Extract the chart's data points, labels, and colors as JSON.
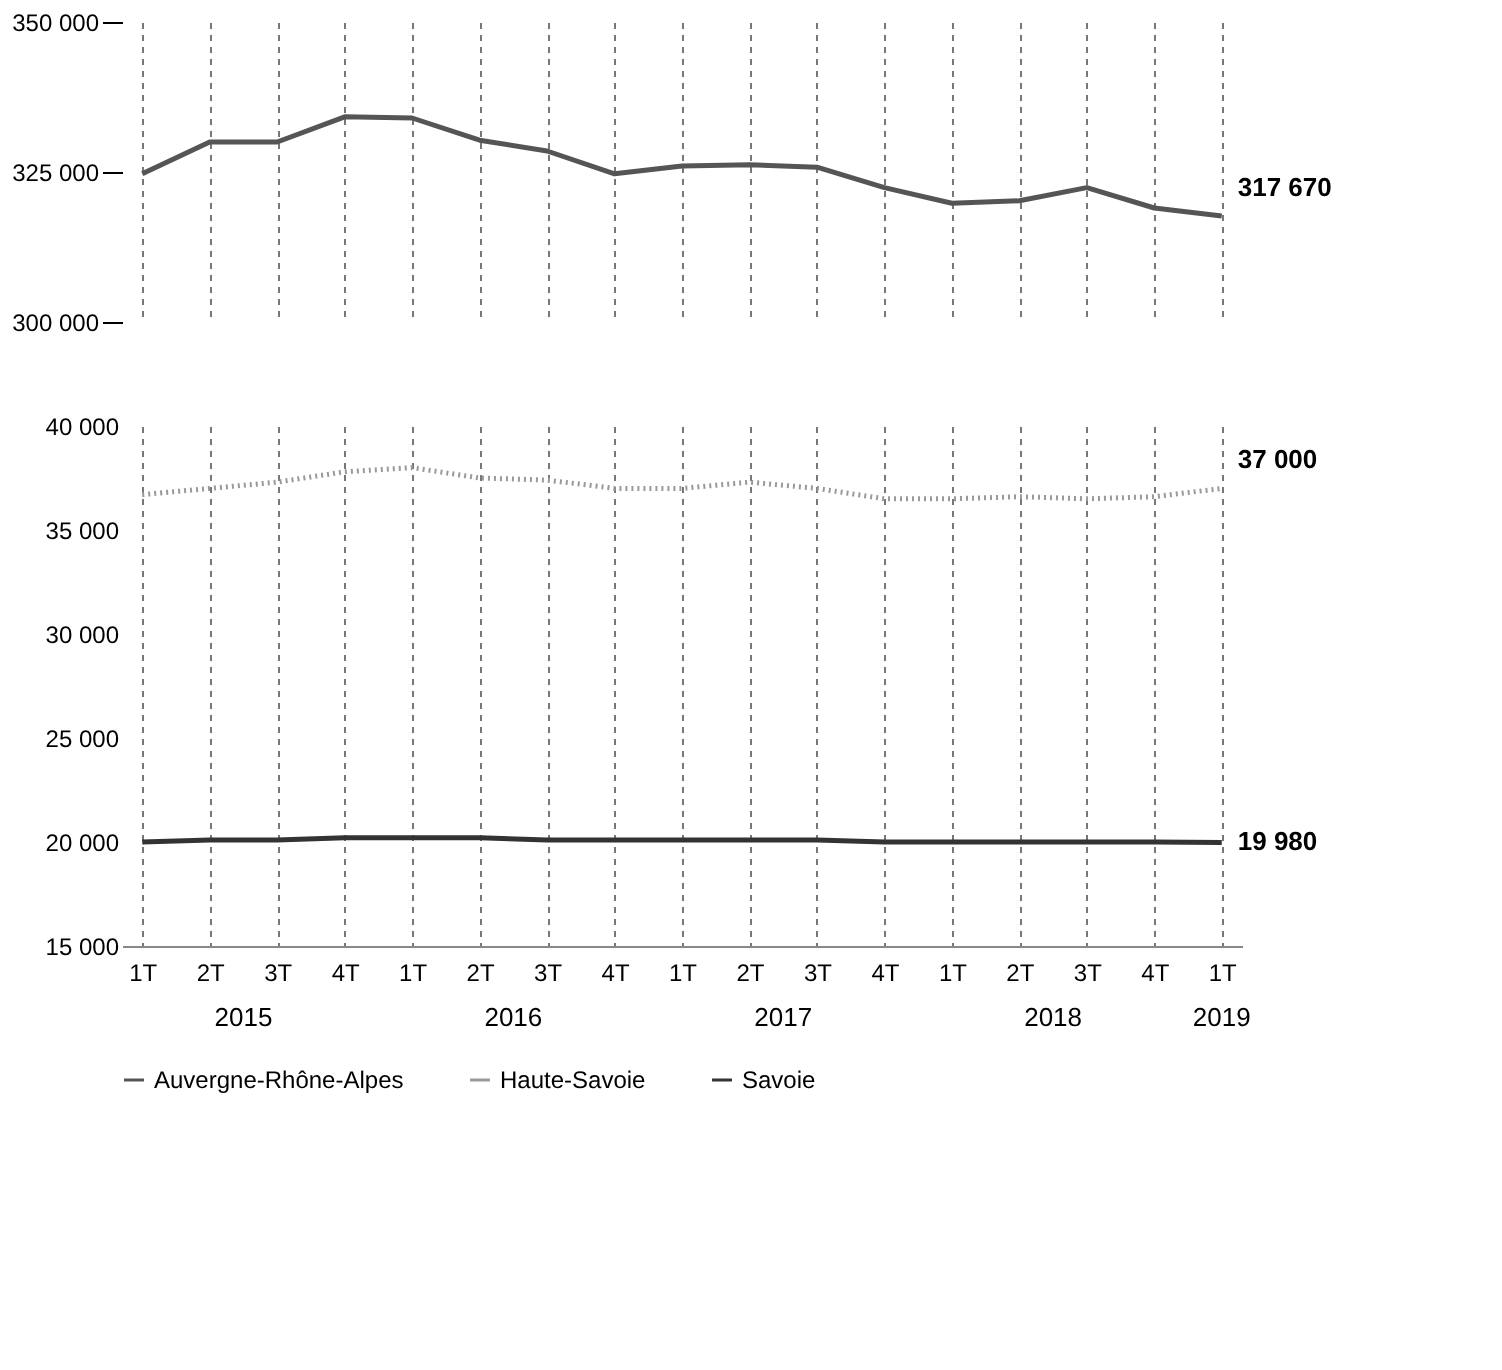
{
  "chart_data": [
    {
      "type": "line",
      "categories": [
        null,
        null,
        null,
        null,
        null,
        null,
        null,
        null,
        null,
        null,
        null,
        null,
        null,
        null,
        null,
        null,
        null
      ],
      "series": [
        {
          "name": "Auvergne-Rhône-Alpes",
          "color": "#555555",
          "values": [
            324700,
            330000,
            330000,
            334200,
            334000,
            330300,
            328500,
            324700,
            326000,
            326200,
            325800,
            322400,
            319800,
            320200,
            322400,
            319000,
            317670
          ],
          "value_labels": [
            null,
            null,
            null,
            null,
            null,
            null,
            null,
            null,
            null,
            null,
            null,
            null,
            null,
            null,
            null,
            null,
            "317 670"
          ]
        }
      ],
      "ylim": [
        300000,
        350000
      ],
      "yticks": [
        {
          "value": 300000,
          "label": "300 000"
        },
        {
          "value": 325000,
          "label": "325 000"
        },
        {
          "value": 350000,
          "label": "350 000"
        }
      ],
      "grid": "x",
      "tick_labels": "y",
      "legend": "bottom",
      "marker": "none",
      "line_style": "solid"
    },
    {
      "type": "line",
      "categories": [
        "1T",
        "2T",
        "3T",
        "4T",
        "1T",
        "2T",
        "3T",
        "4T",
        "1T",
        "2T",
        "3T",
        "4T",
        "1T",
        "2T",
        "3T",
        "4T",
        "1T"
      ],
      "series": [
        {
          "name": "Haute-Savoie",
          "color": "#999999",
          "line_style": "dotted",
          "values": [
            36700,
            37000,
            37300,
            37800,
            38000,
            37500,
            37400,
            37000,
            37000,
            37300,
            37000,
            36500,
            36500,
            36600,
            36500,
            36600,
            37000
          ],
          "value_labels": [
            null,
            null,
            null,
            null,
            null,
            null,
            null,
            null,
            null,
            null,
            null,
            null,
            null,
            null,
            null,
            null,
            "37 000"
          ]
        },
        {
          "name": "Savoie",
          "color": "#333333",
          "line_style": "solid",
          "values": [
            20000,
            20100,
            20100,
            20200,
            20200,
            20200,
            20100,
            20100,
            20100,
            20100,
            20100,
            20000,
            20000,
            20000,
            20000,
            20000,
            19980
          ],
          "value_labels": [
            null,
            null,
            null,
            null,
            null,
            null,
            null,
            null,
            null,
            null,
            null,
            null,
            null,
            null,
            null,
            null,
            "19 980"
          ]
        }
      ],
      "ylim": [
        15000,
        40000
      ],
      "yticks": [
        {
          "value": 15000,
          "label": "15 000"
        },
        {
          "value": 20000,
          "label": "20 000"
        },
        {
          "value": 25000,
          "label": "25 000"
        },
        {
          "value": 30000,
          "label": "30 000"
        },
        {
          "value": 35000,
          "label": "35 000"
        },
        {
          "value": 40000,
          "label": "40 000"
        }
      ],
      "annotations": [
        "2015",
        "2016",
        "2017",
        "2018",
        "2019"
      ],
      "grid": "x",
      "legend": "bottom",
      "marker": "none"
    }
  ]
}
